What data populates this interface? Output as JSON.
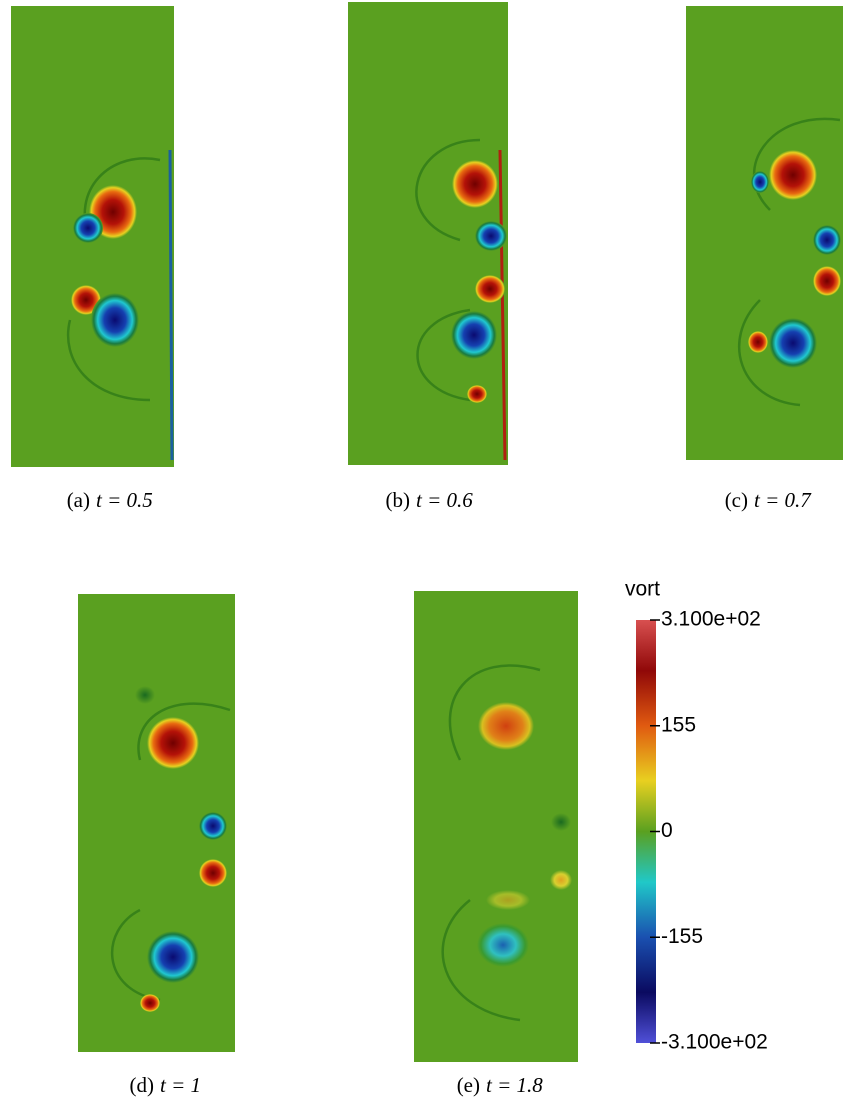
{
  "panels": [
    {
      "tag": "(a)",
      "equation": "t = 0.5"
    },
    {
      "tag": "(b)",
      "equation": "t = 0.6"
    },
    {
      "tag": "(c)",
      "equation": "t = 0.7"
    },
    {
      "tag": "(d)",
      "equation": "t = 1"
    },
    {
      "tag": "(e)",
      "equation": "t = 1.8"
    }
  ],
  "colorbar": {
    "title": "vort",
    "lim": [
      -310,
      310
    ],
    "ticks": [
      {
        "value": 310,
        "label": "3.100e+02"
      },
      155,
      0,
      -155,
      {
        "value": -310,
        "label": "-3.100e+02"
      }
    ]
  }
}
